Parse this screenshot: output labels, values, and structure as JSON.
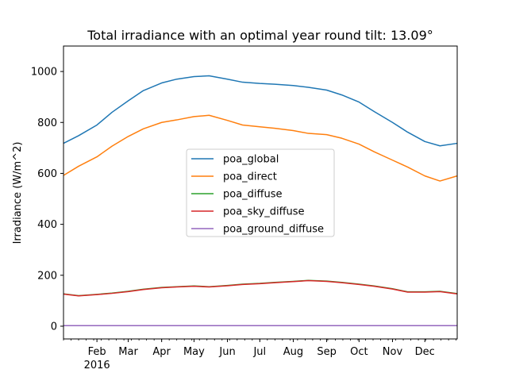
{
  "chart_data": {
    "type": "line",
    "title": "Total irradiance with an optimal year round tilt: 13.09°",
    "xlabel": "",
    "ylabel": "Irradiance (W/m^2)",
    "xlim": [
      "2016-01-01",
      "2016-12-31"
    ],
    "ylim": [
      -50,
      1100
    ],
    "yticks": [
      0,
      200,
      400,
      600,
      800,
      1000
    ],
    "xticks": [
      {
        "date": "2016-02-01",
        "label": "Feb"
      },
      {
        "date": "2016-03-01",
        "label": "Mar"
      },
      {
        "date": "2016-04-01",
        "label": "Apr"
      },
      {
        "date": "2016-05-01",
        "label": "May"
      },
      {
        "date": "2016-06-01",
        "label": "Jun"
      },
      {
        "date": "2016-07-01",
        "label": "Jul"
      },
      {
        "date": "2016-08-01",
        "label": "Aug"
      },
      {
        "date": "2016-09-01",
        "label": "Sep"
      },
      {
        "date": "2016-10-01",
        "label": "Oct"
      },
      {
        "date": "2016-11-01",
        "label": "Nov"
      },
      {
        "date": "2016-12-01",
        "label": "Dec"
      }
    ],
    "year_label": "2016",
    "grid": false,
    "legend_position": "center",
    "x": [
      "2016-01-01",
      "2016-01-15",
      "2016-02-01",
      "2016-02-15",
      "2016-03-01",
      "2016-03-15",
      "2016-04-01",
      "2016-04-15",
      "2016-05-01",
      "2016-05-15",
      "2016-06-01",
      "2016-06-15",
      "2016-07-01",
      "2016-07-15",
      "2016-08-01",
      "2016-08-15",
      "2016-09-01",
      "2016-09-15",
      "2016-10-01",
      "2016-10-15",
      "2016-11-01",
      "2016-11-15",
      "2016-12-01",
      "2016-12-15",
      "2016-12-31"
    ],
    "series": [
      {
        "name": "poa_global",
        "color": "#1f77b4",
        "values": [
          718,
          748,
          790,
          840,
          885,
          925,
          955,
          970,
          980,
          983,
          970,
          958,
          953,
          950,
          945,
          938,
          927,
          908,
          880,
          843,
          800,
          762,
          725,
          708,
          718
        ]
      },
      {
        "name": "poa_direct",
        "color": "#ff7f0e",
        "values": [
          592,
          628,
          665,
          707,
          745,
          775,
          800,
          810,
          823,
          828,
          808,
          790,
          783,
          777,
          768,
          757,
          752,
          738,
          715,
          685,
          652,
          625,
          590,
          570,
          590
        ]
      },
      {
        "name": "poa_diffuse",
        "color": "#2ca02c",
        "values": [
          127,
          120,
          125,
          130,
          137,
          145,
          152,
          155,
          158,
          155,
          160,
          165,
          168,
          172,
          176,
          180,
          177,
          172,
          165,
          158,
          147,
          135,
          135,
          137,
          128
        ]
      },
      {
        "name": "poa_sky_diffuse",
        "color": "#d62728",
        "values": [
          126,
          119,
          124,
          129,
          136,
          144,
          151,
          154,
          157,
          154,
          159,
          164,
          167,
          171,
          175,
          179,
          176,
          171,
          164,
          157,
          146,
          134,
          134,
          136,
          127
        ]
      },
      {
        "name": "poa_ground_diffuse",
        "color": "#9467bd",
        "values": [
          2,
          2,
          2,
          2,
          2,
          2,
          2,
          2,
          2,
          2,
          2,
          2,
          2,
          2,
          2,
          2,
          2,
          2,
          2,
          2,
          2,
          2,
          2,
          2,
          2
        ]
      }
    ]
  }
}
